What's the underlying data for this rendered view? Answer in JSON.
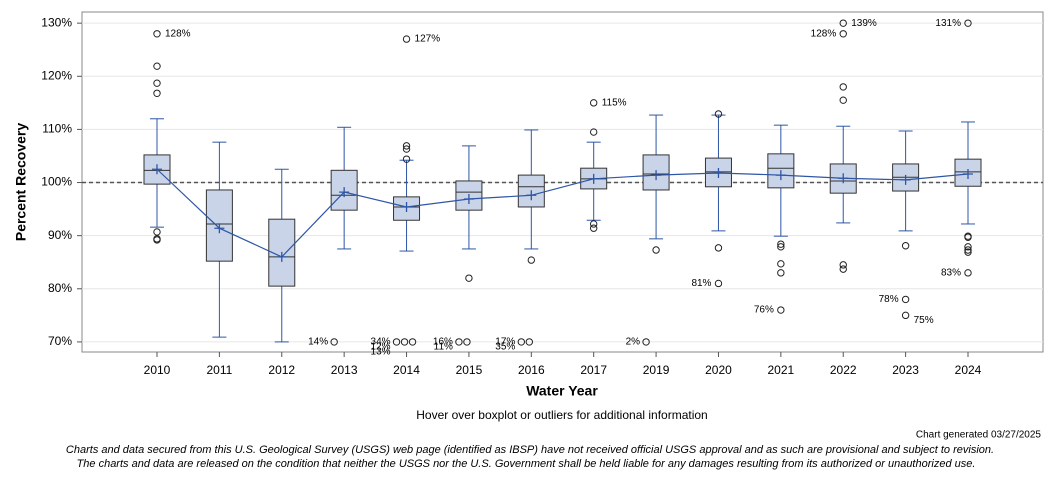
{
  "chart_data": {
    "type": "boxplot",
    "ylabel": "Percent Recovery",
    "xlabel": "Water Year",
    "subtitle": "Hover over boxplot or outliers for additional information",
    "generated": "Chart generated 03/27/2025",
    "disclaimer": [
      "Charts and data secured from this U.S. Geological Survey (USGS) web page (identified as IBSP) have not received official USGS approval and as such are provisional and subject to revision.",
      "The charts and data are released on the condition that neither the USGS nor the U.S. Government shall be held liable for any damages resulting from its authorized or unauthorized use."
    ],
    "ylim": [
      68.1,
      132.1
    ],
    "yticks": [
      {
        "value": 70,
        "label": "70%"
      },
      {
        "value": 80,
        "label": "80%"
      },
      {
        "value": 90,
        "label": "90%"
      },
      {
        "value": 100,
        "label": "100%"
      },
      {
        "value": 110,
        "label": "110%"
      },
      {
        "value": 120,
        "label": "120%"
      },
      {
        "value": 130,
        "label": "130%"
      }
    ],
    "grid": true,
    "ref_line": 100,
    "box_color": "#c9d4e8",
    "line_color": "#2e56a6",
    "categories": [
      "2010",
      "2011",
      "2012",
      "2013",
      "2014",
      "2015",
      "2016",
      "2017",
      "2019",
      "2020",
      "2021",
      "2022",
      "2023",
      "2024"
    ],
    "boxes": [
      {
        "low": 91.6,
        "q1": 99.7,
        "median": 102.3,
        "q3": 105.2,
        "high": 112.0,
        "mean": 102.5,
        "outliers": [
          121.9,
          118.7,
          116.8,
          90.7,
          89.4,
          89.2
        ],
        "labeled": [
          {
            "value": 128,
            "label": "128%"
          }
        ]
      },
      {
        "low": 70.9,
        "q1": 85.2,
        "median": 92.2,
        "q3": 98.6,
        "high": 107.6,
        "mean": 91.4,
        "outliers": [],
        "labeled": []
      },
      {
        "low": 70.0,
        "q1": 80.5,
        "median": 86.0,
        "q3": 93.1,
        "high": 102.5,
        "mean": 86.0,
        "outliers": [],
        "labeled": []
      },
      {
        "low": 87.5,
        "q1": 94.8,
        "median": 97.6,
        "q3": 102.3,
        "high": 110.4,
        "mean": 98.2,
        "outliers": [],
        "labeled": [
          {
            "value": 14,
            "label": "14%"
          }
        ]
      },
      {
        "low": 87.1,
        "q1": 92.9,
        "median": 95.4,
        "q3": 97.3,
        "high": 104.2,
        "mean": 95.4,
        "outliers": [
          106.9,
          106.3,
          104.4
        ],
        "labeled": [
          {
            "value": 127,
            "label": "127%"
          },
          {
            "value": 34,
            "label": "34%"
          },
          {
            "value": 12,
            "label": "12%"
          },
          {
            "value": 13,
            "label": "13%"
          }
        ]
      },
      {
        "low": 87.5,
        "q1": 94.8,
        "median": 98.2,
        "q3": 100.3,
        "high": 106.9,
        "mean": 96.9,
        "outliers": [
          82.0
        ],
        "labeled": [
          {
            "value": 16,
            "label": "16%"
          },
          {
            "value": 11,
            "label": "11%"
          }
        ]
      },
      {
        "low": 87.5,
        "q1": 95.4,
        "median": 99.2,
        "q3": 101.4,
        "high": 109.9,
        "mean": 97.6,
        "outliers": [
          85.4
        ],
        "labeled": [
          {
            "value": 17,
            "label": "17%"
          },
          {
            "value": 35,
            "label": "35%"
          }
        ]
      },
      {
        "low": 92.9,
        "q1": 98.8,
        "median": 100.7,
        "q3": 102.7,
        "high": 107.6,
        "mean": 100.7,
        "outliers": [
          109.5,
          92.2,
          91.4
        ],
        "labeled": [
          {
            "value": 115,
            "label": "115%"
          }
        ]
      },
      {
        "low": 89.4,
        "q1": 98.6,
        "median": 101.6,
        "q3": 105.2,
        "high": 112.7,
        "mean": 101.4,
        "outliers": [
          87.3
        ],
        "labeled": [
          {
            "value": 2,
            "label": "2%"
          }
        ]
      },
      {
        "low": 90.9,
        "q1": 99.2,
        "median": 102.0,
        "q3": 104.6,
        "high": 112.7,
        "mean": 101.8,
        "outliers": [
          112.9,
          87.7
        ],
        "labeled": [
          {
            "value": 81,
            "label": "81%"
          }
        ]
      },
      {
        "low": 89.9,
        "q1": 99.0,
        "median": 102.7,
        "q3": 105.4,
        "high": 110.8,
        "mean": 101.4,
        "outliers": [
          88.4,
          87.9,
          84.7,
          83.0
        ],
        "labeled": [
          {
            "value": 76,
            "label": "76%"
          }
        ]
      },
      {
        "low": 92.4,
        "q1": 98.0,
        "median": 100.3,
        "q3": 103.5,
        "high": 110.6,
        "mean": 100.8,
        "outliers": [
          118.0,
          115.5,
          84.5,
          83.7
        ],
        "labeled": [
          {
            "value": 139,
            "label": "139%"
          },
          {
            "value": 128,
            "label": "128%"
          }
        ]
      },
      {
        "low": 90.9,
        "q1": 98.4,
        "median": 101.0,
        "q3": 103.5,
        "high": 109.7,
        "mean": 100.5,
        "outliers": [
          88.1
        ],
        "labeled": [
          {
            "value": 78,
            "label": "78%"
          },
          {
            "value": 75,
            "label": "75%"
          }
        ]
      },
      {
        "low": 92.2,
        "q1": 99.3,
        "median": 102.0,
        "q3": 104.4,
        "high": 111.4,
        "mean": 101.6,
        "outliers": [
          89.9,
          89.7,
          87.9,
          87.3,
          86.9
        ],
        "labeled": [
          {
            "value": 83,
            "label": "83%"
          },
          {
            "value": 131,
            "label": "131%"
          }
        ]
      }
    ]
  }
}
